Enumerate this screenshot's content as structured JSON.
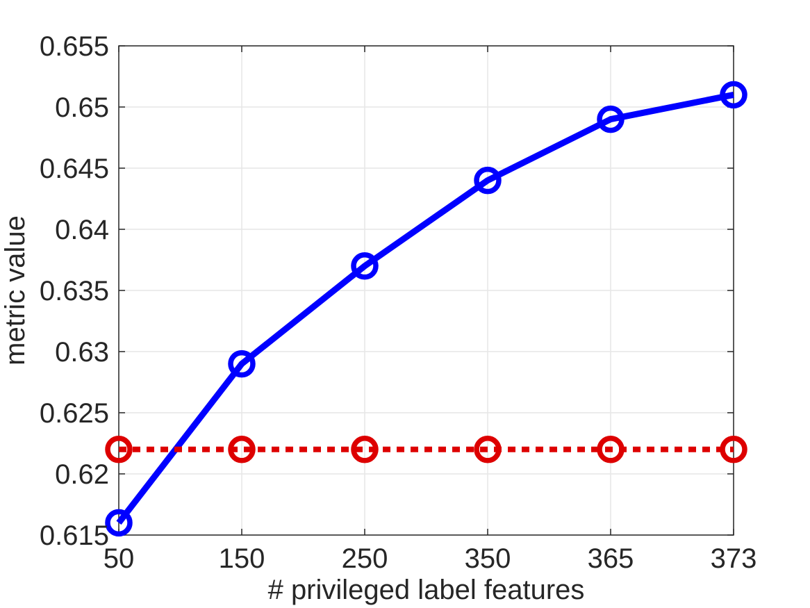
{
  "chart_data": {
    "type": "line",
    "categories": [
      "50",
      "150",
      "250",
      "350",
      "365",
      "373"
    ],
    "xlabel": "# privileged label features",
    "ylabel": "metric value",
    "ylim": [
      0.615,
      0.655
    ],
    "yticks": [
      "0.615",
      "0.62",
      "0.625",
      "0.63",
      "0.635",
      "0.64",
      "0.645",
      "0.65",
      "0.655"
    ],
    "grid": true,
    "series": [
      {
        "values": [
          0.616,
          0.629,
          0.637,
          0.644,
          0.649,
          0.651
        ],
        "color": "#0000ff",
        "line_style": "solid",
        "marker": "circle-open"
      },
      {
        "values": [
          0.622,
          0.622,
          0.622,
          0.622,
          0.622,
          0.622
        ],
        "color": "#dd0000",
        "line_style": "dotted",
        "marker": "circle-open"
      }
    ]
  }
}
